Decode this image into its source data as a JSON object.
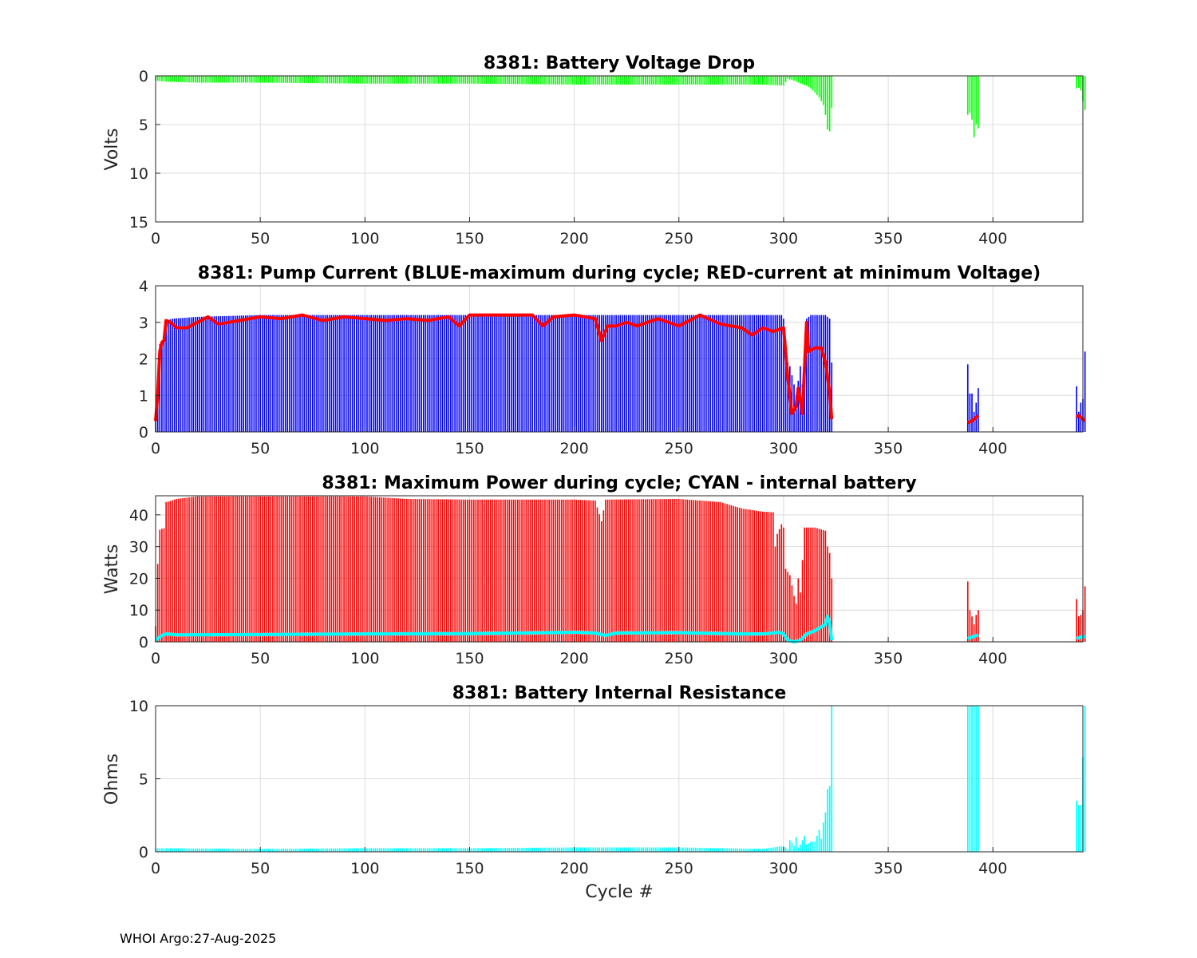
{
  "footer": "WHOI Argo:27-Aug-2025",
  "colors": {
    "green": "#00ff00",
    "blue": "#0000ff",
    "red": "#ff0000",
    "cyan": "#00ffff"
  },
  "chart_data": [
    {
      "type": "bar",
      "title": "8381: Battery Voltage Drop",
      "ylabel": "Volts",
      "xlabel": "",
      "xlim": [
        0,
        443
      ],
      "ylim": [
        0,
        15
      ],
      "y_reversed": true,
      "xticks": [
        0,
        50,
        100,
        150,
        200,
        250,
        300,
        350,
        400
      ],
      "yticks": [
        0,
        5,
        10,
        15
      ],
      "grid": true,
      "bar_color": "#00ff00",
      "series": [
        {
          "color": "#00ff00",
          "points": [
            [
              0,
              0.5
            ],
            [
              5,
              0.6
            ],
            [
              20,
              0.7
            ],
            [
              50,
              0.7
            ],
            [
              100,
              0.8
            ],
            [
              150,
              0.8
            ],
            [
              200,
              0.9
            ],
            [
              250,
              0.9
            ],
            [
              290,
              0.9
            ],
            [
              300,
              1.0
            ],
            [
              302,
              0.3
            ],
            [
              305,
              0.5
            ],
            [
              308,
              0.8
            ],
            [
              311,
              1.0
            ],
            [
              313,
              1.3
            ],
            [
              315,
              1.7
            ],
            [
              317,
              2.2
            ],
            [
              319,
              3.0
            ],
            [
              320,
              4.0
            ],
            [
              321,
              5.5
            ],
            [
              322,
              5.7
            ],
            [
              323,
              3.3
            ],
            [
              388,
              4.0
            ],
            [
              389,
              3.8
            ],
            [
              390,
              4.5
            ],
            [
              391,
              6.3
            ],
            [
              392,
              5.0
            ],
            [
              393,
              5.4
            ],
            [
              441,
              1.2
            ],
            [
              442,
              1.5
            ],
            [
              443,
              2.6
            ],
            [
              444,
              3.5
            ]
          ]
        }
      ]
    },
    {
      "type": "bar",
      "title": "8381: Pump Current (BLUE-maximum during cycle; RED-current at minimum Voltage)",
      "ylabel": "",
      "xlabel": "",
      "xlim": [
        0,
        443
      ],
      "ylim": [
        0,
        4
      ],
      "xticks": [
        0,
        50,
        100,
        150,
        200,
        250,
        300,
        350,
        400
      ],
      "yticks": [
        0,
        1,
        2,
        3,
        4
      ],
      "grid": true,
      "series": [
        {
          "name": "",
          "color": "#0000ff",
          "kind": "bar",
          "points": [
            [
              0,
              0.4
            ],
            [
              1,
              1.2
            ],
            [
              2,
              2.4
            ],
            [
              3,
              2.5
            ],
            [
              4,
              2.6
            ],
            [
              5,
              3.05
            ],
            [
              8,
              3.1
            ],
            [
              20,
              3.15
            ],
            [
              50,
              3.2
            ],
            [
              100,
              3.2
            ],
            [
              150,
              3.2
            ],
            [
              200,
              3.2
            ],
            [
              250,
              3.2
            ],
            [
              299,
              3.2
            ],
            [
              300,
              3.1
            ],
            [
              302,
              1.9
            ],
            [
              303,
              1.8
            ],
            [
              305,
              1.3
            ],
            [
              306,
              1.0
            ],
            [
              308,
              1.8
            ],
            [
              309,
              1.3
            ],
            [
              311,
              3.1
            ],
            [
              313,
              3.2
            ],
            [
              320,
              3.2
            ],
            [
              322,
              3.1
            ],
            [
              323,
              1.9
            ],
            [
              388,
              1.85
            ],
            [
              389,
              1.05
            ],
            [
              390,
              1.05
            ],
            [
              391,
              0.55
            ],
            [
              392,
              0.8
            ],
            [
              393,
              1.2
            ],
            [
              440,
              1.25
            ],
            [
              441,
              0.55
            ],
            [
              442,
              0.8
            ],
            [
              443,
              0.9
            ],
            [
              444,
              2.2
            ]
          ]
        },
        {
          "name": "",
          "color": "#ff0000",
          "kind": "line",
          "points": [
            [
              0,
              0.3
            ],
            [
              1,
              1.0
            ],
            [
              2,
              2.2
            ],
            [
              3,
              2.45
            ],
            [
              4,
              2.5
            ],
            [
              5,
              3.05
            ],
            [
              7,
              3.0
            ],
            [
              10,
              2.85
            ],
            [
              15,
              2.85
            ],
            [
              20,
              3.0
            ],
            [
              25,
              3.15
            ],
            [
              30,
              2.95
            ],
            [
              40,
              3.05
            ],
            [
              50,
              3.15
            ],
            [
              60,
              3.1
            ],
            [
              70,
              3.2
            ],
            [
              80,
              3.05
            ],
            [
              90,
              3.15
            ],
            [
              100,
              3.1
            ],
            [
              110,
              3.05
            ],
            [
              120,
              3.1
            ],
            [
              130,
              3.05
            ],
            [
              140,
              3.15
            ],
            [
              145,
              2.9
            ],
            [
              150,
              3.2
            ],
            [
              160,
              3.2
            ],
            [
              180,
              3.2
            ],
            [
              185,
              2.9
            ],
            [
              190,
              3.15
            ],
            [
              200,
              3.2
            ],
            [
              210,
              3.1
            ],
            [
              213,
              2.5
            ],
            [
              216,
              2.9
            ],
            [
              220,
              2.9
            ],
            [
              225,
              3.0
            ],
            [
              230,
              2.9
            ],
            [
              240,
              3.1
            ],
            [
              250,
              2.9
            ],
            [
              260,
              3.2
            ],
            [
              270,
              2.95
            ],
            [
              280,
              2.85
            ],
            [
              285,
              2.65
            ],
            [
              290,
              2.85
            ],
            [
              295,
              2.75
            ],
            [
              300,
              2.85
            ],
            [
              302,
              1.5
            ],
            [
              304,
              0.5
            ],
            [
              306,
              0.7
            ],
            [
              307,
              1.2
            ],
            [
              309,
              0.5
            ],
            [
              311,
              3.0
            ],
            [
              312,
              2.2
            ],
            [
              315,
              2.3
            ],
            [
              318,
              2.3
            ],
            [
              320,
              1.9
            ],
            [
              322,
              1.1
            ],
            [
              323,
              0.35
            ],
            [
              388,
              0.25
            ],
            [
              390,
              0.3
            ],
            [
              392,
              0.4
            ],
            [
              393,
              0.45
            ],
            [
              440,
              0.4
            ],
            [
              441,
              0.45
            ],
            [
              443,
              0.35
            ],
            [
              444,
              0.3
            ]
          ]
        }
      ]
    },
    {
      "type": "bar",
      "title": "8381: Maximum Power during cycle; CYAN - internal battery",
      "ylabel": "Watts",
      "xlabel": "",
      "xlim": [
        0,
        443
      ],
      "ylim": [
        0,
        46
      ],
      "xticks": [
        0,
        50,
        100,
        150,
        200,
        250,
        300,
        350,
        400
      ],
      "yticks": [
        0,
        10,
        20,
        30,
        40
      ],
      "grid": true,
      "series": [
        {
          "name": "",
          "color": "#ff0000",
          "kind": "bar",
          "points": [
            [
              0,
              5.0
            ],
            [
              1,
              24.5
            ],
            [
              2,
              35.3
            ],
            [
              3,
              35.6
            ],
            [
              4,
              35.8
            ],
            [
              5,
              44.0
            ],
            [
              10,
              45.0
            ],
            [
              20,
              45.8
            ],
            [
              50,
              45.8
            ],
            [
              100,
              45.8
            ],
            [
              120,
              45.0
            ],
            [
              150,
              44.8
            ],
            [
              200,
              44.8
            ],
            [
              210,
              44.5
            ],
            [
              213,
              38.0
            ],
            [
              215,
              44.8
            ],
            [
              250,
              45.0
            ],
            [
              270,
              44.0
            ],
            [
              280,
              42.0
            ],
            [
              290,
              41.0
            ],
            [
              295,
              40.8
            ],
            [
              296,
              30.0
            ],
            [
              297,
              34.0
            ],
            [
              299,
              37.0
            ],
            [
              300,
              36.0
            ],
            [
              301,
              23.0
            ],
            [
              303,
              21.0
            ],
            [
              305,
              14.5
            ],
            [
              306,
              12.0
            ],
            [
              307,
              20.0
            ],
            [
              308,
              15.5
            ],
            [
              310,
              36.0
            ],
            [
              315,
              36.0
            ],
            [
              320,
              35.0
            ],
            [
              321,
              30.0
            ],
            [
              322,
              28.0
            ],
            [
              323,
              20.0
            ],
            [
              388,
              19.0
            ],
            [
              389,
              10.0
            ],
            [
              390,
              8.0
            ],
            [
              391,
              5.5
            ],
            [
              392,
              8.5
            ],
            [
              393,
              10.0
            ],
            [
              440,
              13.5
            ],
            [
              441,
              8.0
            ],
            [
              442,
              8.5
            ],
            [
              443,
              10.0
            ],
            [
              444,
              17.5
            ]
          ]
        },
        {
          "name": "",
          "color": "#00ffff",
          "kind": "line",
          "points": [
            [
              0,
              0.5
            ],
            [
              3,
              2.0
            ],
            [
              5,
              2.5
            ],
            [
              10,
              2.2
            ],
            [
              50,
              2.3
            ],
            [
              100,
              2.5
            ],
            [
              150,
              2.6
            ],
            [
              200,
              3.0
            ],
            [
              210,
              2.8
            ],
            [
              215,
              2.0
            ],
            [
              220,
              2.8
            ],
            [
              250,
              2.9
            ],
            [
              280,
              2.5
            ],
            [
              290,
              2.5
            ],
            [
              298,
              3.0
            ],
            [
              300,
              2.5
            ],
            [
              302,
              0.5
            ],
            [
              305,
              0.0
            ],
            [
              308,
              0.5
            ],
            [
              311,
              2.5
            ],
            [
              315,
              3.5
            ],
            [
              320,
              5.5
            ],
            [
              321,
              8.0
            ],
            [
              322,
              6.0
            ],
            [
              323,
              0.5
            ],
            [
              388,
              1.0
            ],
            [
              390,
              1.5
            ],
            [
              392,
              2.0
            ],
            [
              393,
              2.2
            ],
            [
              440,
              1.0
            ],
            [
              442,
              1.5
            ],
            [
              444,
              1.8
            ]
          ]
        }
      ]
    },
    {
      "type": "bar",
      "title": "8381: Battery Internal Resistance",
      "ylabel": "Ohms",
      "xlabel": "Cycle #",
      "xlim": [
        0,
        443
      ],
      "ylim": [
        0,
        10
      ],
      "xticks": [
        0,
        50,
        100,
        150,
        200,
        250,
        300,
        350,
        400
      ],
      "yticks": [
        0,
        5,
        10
      ],
      "grid": true,
      "series": [
        {
          "name": "",
          "color": "#00ffff",
          "kind": "bar",
          "points": [
            [
              0,
              0.25
            ],
            [
              50,
              0.2
            ],
            [
              100,
              0.25
            ],
            [
              150,
              0.25
            ],
            [
              200,
              0.3
            ],
            [
              250,
              0.3
            ],
            [
              290,
              0.2
            ],
            [
              300,
              0.4
            ],
            [
              302,
              0.2
            ],
            [
              303,
              0.8
            ],
            [
              305,
              0.4
            ],
            [
              306,
              1.0
            ],
            [
              307,
              0.3
            ],
            [
              308,
              0.5
            ],
            [
              310,
              1.1
            ],
            [
              311,
              0.5
            ],
            [
              312,
              0.6
            ],
            [
              313,
              0.7
            ],
            [
              315,
              0.7
            ],
            [
              317,
              1.5
            ],
            [
              318,
              0.9
            ],
            [
              319,
              2.0
            ],
            [
              320,
              2.7
            ],
            [
              321,
              4.3
            ],
            [
              322,
              4.5
            ],
            [
              323,
              10
            ],
            [
              388,
              10
            ],
            [
              389,
              10
            ],
            [
              390,
              10
            ],
            [
              391,
              10
            ],
            [
              392,
              10
            ],
            [
              393,
              10
            ],
            [
              440,
              3.5
            ],
            [
              441,
              3.2
            ],
            [
              442,
              3.2
            ],
            [
              443,
              6.5
            ],
            [
              444,
              10
            ]
          ]
        }
      ]
    }
  ]
}
